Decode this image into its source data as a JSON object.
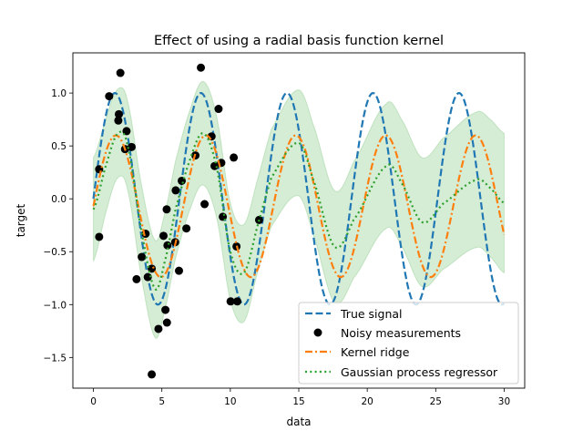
{
  "chart_data": {
    "type": "line",
    "title": "Effect of using a radial basis function kernel",
    "xlabel": "data",
    "ylabel": "target",
    "xlim": [
      -1.5,
      31.5
    ],
    "ylim": [
      -1.79,
      1.38
    ],
    "xticks": [
      0,
      5,
      10,
      15,
      20,
      25,
      30
    ],
    "xtick_labels": [
      "0",
      "5",
      "10",
      "15",
      "20",
      "25",
      "30"
    ],
    "yticks": [
      -1.5,
      -1.0,
      -0.5,
      0.0,
      0.5,
      1.0
    ],
    "ytick_labels": [
      "−1.5",
      "−1.0",
      "−0.5",
      "0.0",
      "0.5",
      "1.0"
    ],
    "grid": false,
    "legend_position": "lower-right",
    "colors": {
      "true_signal": "#1f77b4",
      "noisy": "#000000",
      "kernel_ridge": "#ff7f0e",
      "gp": "#2ca02c",
      "gp_band": "#2ca02c"
    },
    "series": [
      {
        "name": "True signal",
        "style": "dashed",
        "function": "sin(x)",
        "x_range": [
          0,
          30
        ]
      },
      {
        "name": "Noisy measurements",
        "style": "scatter",
        "points": [
          [
            0.42,
            0.28
          ],
          [
            0.42,
            -0.36
          ],
          [
            1.15,
            0.97
          ],
          [
            1.82,
            0.74
          ],
          [
            1.86,
            0.8
          ],
          [
            1.97,
            1.19
          ],
          [
            2.31,
            0.47
          ],
          [
            2.42,
            0.64
          ],
          [
            2.79,
            0.49
          ],
          [
            3.15,
            -0.76
          ],
          [
            3.53,
            -0.55
          ],
          [
            3.81,
            -0.33
          ],
          [
            3.97,
            -0.74
          ],
          [
            4.26,
            -0.66
          ],
          [
            4.26,
            -1.66
          ],
          [
            4.75,
            -1.23
          ],
          [
            5.12,
            -0.35
          ],
          [
            5.26,
            -1.05
          ],
          [
            5.35,
            -0.1
          ],
          [
            5.37,
            -1.17
          ],
          [
            5.41,
            -0.44
          ],
          [
            5.97,
            -0.41
          ],
          [
            6.01,
            0.08
          ],
          [
            6.25,
            -0.68
          ],
          [
            6.45,
            0.17
          ],
          [
            6.79,
            -0.28
          ],
          [
            7.45,
            0.41
          ],
          [
            7.85,
            1.24
          ],
          [
            8.12,
            -0.05
          ],
          [
            8.63,
            0.59
          ],
          [
            8.85,
            0.31
          ],
          [
            9.14,
            0.85
          ],
          [
            9.34,
            0.34
          ],
          [
            9.45,
            -0.17
          ],
          [
            10.02,
            -0.97
          ],
          [
            10.25,
            0.39
          ],
          [
            10.45,
            -0.45
          ],
          [
            10.51,
            -0.97
          ],
          [
            12.1,
            -0.2
          ]
        ]
      },
      {
        "name": "Kernel ridge",
        "style": "dashdot",
        "function": "-0.07 + 0.67*sin(2*pi*x/6.57)",
        "x_range": [
          0,
          30
        ]
      },
      {
        "name": "Gaussian process regressor",
        "style": "dotted",
        "x": [
          0,
          1,
          1.8,
          2.5,
          3.5,
          4.5,
          5.2,
          6,
          7,
          8,
          9,
          10,
          11,
          12,
          13,
          14.95,
          16,
          17.6,
          19,
          21.4,
          22.5,
          24,
          25.5,
          28,
          29,
          30
        ],
        "mean": [
          -0.1,
          0.35,
          0.62,
          0.5,
          -0.3,
          -0.85,
          -0.6,
          -0.1,
          0.35,
          0.62,
          0.3,
          -0.5,
          -0.7,
          -0.25,
          0.2,
          0.53,
          0.2,
          -0.45,
          -0.2,
          0.31,
          0.15,
          -0.22,
          -0.05,
          0.18,
          0.1,
          -0.04
        ],
        "std": [
          0.49,
          0.44,
          0.42,
          0.42,
          0.44,
          0.46,
          0.46,
          0.46,
          0.47,
          0.49,
          0.48,
          0.46,
          0.46,
          0.44,
          0.46,
          0.5,
          0.52,
          0.53,
          0.55,
          0.59,
          0.6,
          0.61,
          0.62,
          0.64,
          0.65,
          0.66
        ]
      }
    ]
  }
}
